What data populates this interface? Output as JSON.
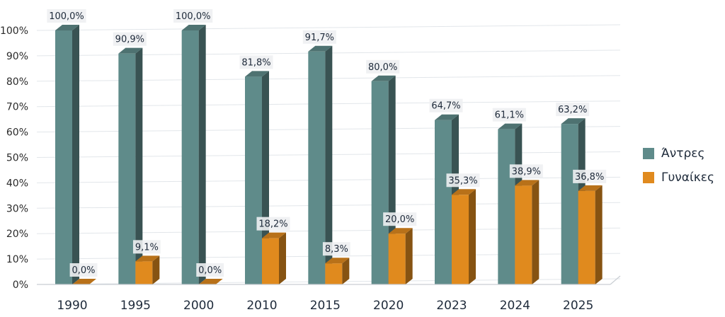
{
  "chart_data": {
    "type": "bar",
    "categories": [
      "1990",
      "1995",
      "2000",
      "2010",
      "2015",
      "2020",
      "2023",
      "2024",
      "2025"
    ],
    "series": [
      {
        "name": "Άντρες",
        "color": "#5f8b8a",
        "values": [
          100.0,
          90.9,
          100.0,
          81.8,
          91.7,
          80.0,
          64.7,
          61.1,
          63.2
        ],
        "labels": [
          "100,0%",
          "90,9%",
          "100,0%",
          "81,8%",
          "91,7%",
          "80,0%",
          "64,7%",
          "61,1%",
          "63,2%"
        ]
      },
      {
        "name": "Γυναίκες",
        "color": "#e08a1e",
        "values": [
          0.0,
          9.1,
          0.0,
          18.2,
          8.3,
          20.0,
          35.3,
          38.9,
          36.8
        ],
        "labels": [
          "0,0%",
          "9,1%",
          "0,0%",
          "18,2%",
          "8,3%",
          "20,0%",
          "35,3%",
          "38,9%",
          "36,8%"
        ]
      }
    ],
    "yticks": [
      "0%",
      "10%",
      "20%",
      "30%",
      "40%",
      "50%",
      "60%",
      "70%",
      "80%",
      "90%",
      "100%"
    ],
    "ylim": [
      0,
      100
    ],
    "grid": true,
    "legend": "right",
    "style": "3d"
  }
}
